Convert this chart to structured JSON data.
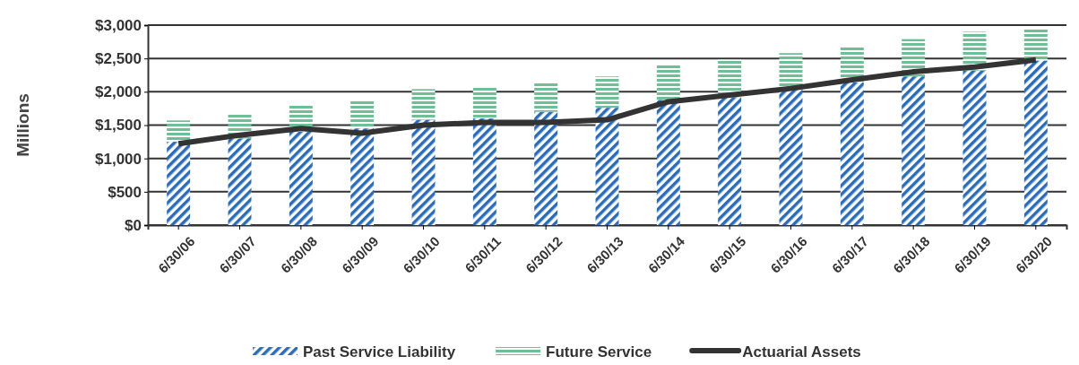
{
  "chart_data": {
    "type": "bar",
    "ylabel": "Millions",
    "stacked": true,
    "legend": "bottom",
    "grid": "y",
    "categories": [
      "6/30/06",
      "6/30/07",
      "6/30/08",
      "6/30/09",
      "6/30/10",
      "6/30/11",
      "6/30/12",
      "6/30/13",
      "6/30/14",
      "6/30/15",
      "6/30/16",
      "6/30/17",
      "6/30/18",
      "6/30/19",
      "6/30/20"
    ],
    "ylim": [
      0,
      3000
    ],
    "yticks": [
      {
        "value": 0,
        "label": "$0"
      },
      {
        "value": 500,
        "label": "$500"
      },
      {
        "value": 1000,
        "label": "$1,000"
      },
      {
        "value": 1500,
        "label": "$1,500"
      },
      {
        "value": 2000,
        "label": "$2,000"
      },
      {
        "value": 2500,
        "label": "$2,500"
      },
      {
        "value": 3000,
        "label": "$3,000"
      }
    ],
    "series": [
      {
        "name": "Past Service Liability",
        "color": "#2b6cb8",
        "values": [
          1250,
          1300,
          1400,
          1450,
          1580,
          1600,
          1700,
          1760,
          1880,
          1920,
          2040,
          2140,
          2230,
          2320,
          2470
        ]
      },
      {
        "name": "Future Service",
        "color": "#6fbf96",
        "values": [
          320,
          370,
          400,
          430,
          460,
          460,
          450,
          470,
          520,
          560,
          540,
          540,
          560,
          580,
          480
        ]
      },
      {
        "name": "Actuarial Assets",
        "type": "line",
        "color": "#333333",
        "values": [
          1220,
          1350,
          1450,
          1380,
          1500,
          1540,
          1540,
          1580,
          1850,
          1950,
          2050,
          2180,
          2300,
          2370,
          2480
        ]
      }
    ]
  }
}
